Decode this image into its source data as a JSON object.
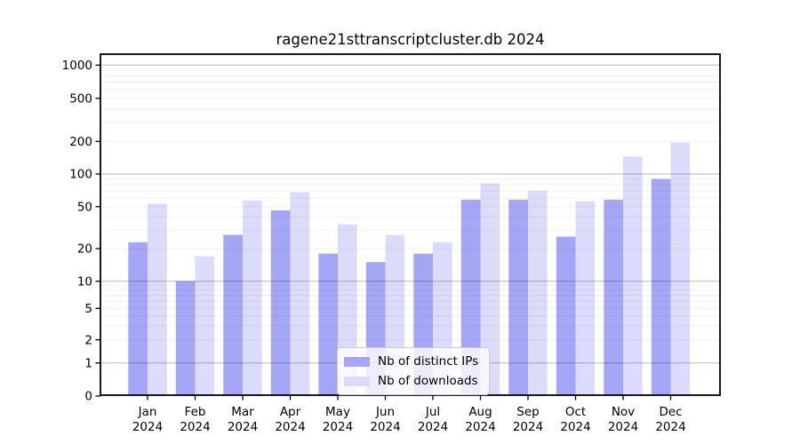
{
  "chart_data": {
    "type": "bar",
    "title": "ragene21sttranscriptcluster.db 2024",
    "categories": [
      "Jan",
      "Feb",
      "Mar",
      "Apr",
      "May",
      "Jun",
      "Jul",
      "Aug",
      "Sep",
      "Oct",
      "Nov",
      "Dec"
    ],
    "category_year": "2024",
    "series": [
      {
        "name": "Nb of distinct IPs",
        "color": "#a6a6f7",
        "values": [
          23,
          10,
          27,
          46,
          18,
          15,
          18,
          58,
          58,
          26,
          58,
          90
        ]
      },
      {
        "name": "Nb of downloads",
        "color": "#dcdcfa",
        "values": [
          53,
          17,
          57,
          68,
          34,
          27,
          23,
          82,
          70,
          56,
          145,
          195
        ]
      }
    ],
    "yticks": [
      0,
      1,
      2,
      5,
      10,
      20,
      50,
      100,
      200,
      500,
      1000
    ],
    "ylim": [
      0,
      1000
    ],
    "yscale": "symlog",
    "grid": true,
    "legend_position": "lower center",
    "axis_color": "#000000",
    "major_grid_color": "rgba(0,0,0,0.28)",
    "minor_grid_color": "rgba(0,0,0,0.06)"
  }
}
